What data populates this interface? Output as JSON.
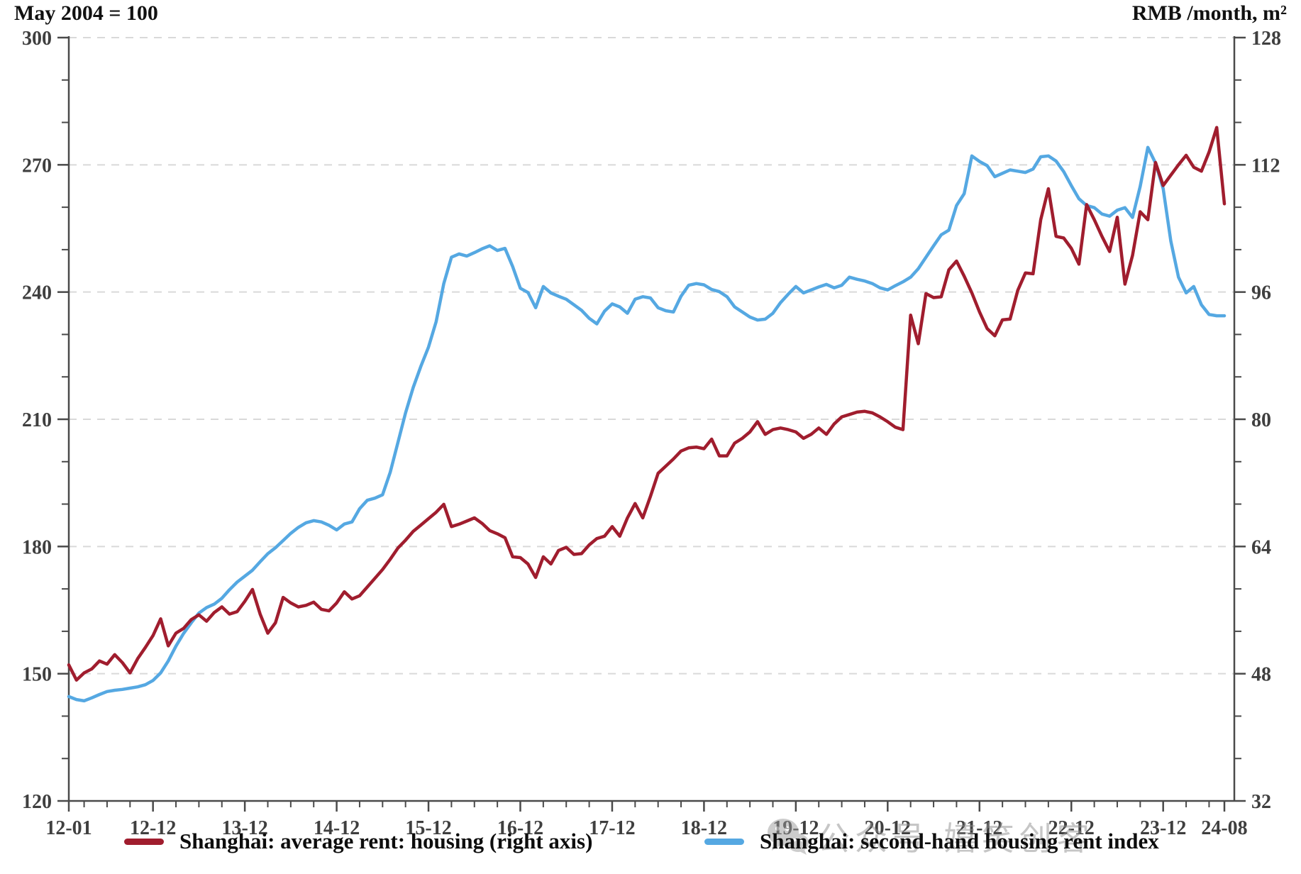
{
  "titles": {
    "left": "May 2004 = 100",
    "right": "RMB /month, m²"
  },
  "legend": {
    "items": [
      {
        "label": "Shanghai: average rent: housing (right axis)",
        "color": "#a01d2e"
      },
      {
        "label": "Shanghai: second-hand housing rent index",
        "color": "#55a8e2"
      }
    ]
  },
  "watermark": {
    "icon": "wechat-icon",
    "text": "公众号 嬉笑创客"
  },
  "colors": {
    "red_series": "#a01d2e",
    "blue_series": "#55a8e2",
    "grid": "#d9d9d9",
    "spine": "#4a4a4a",
    "tick_label": "#3f3f3f"
  },
  "chart_data": {
    "type": "line",
    "title": "",
    "x_unit": "month",
    "x_start": "2012-01",
    "x_end": "2024-08",
    "points_count": 152,
    "grid": "horizontal-dashed",
    "legend_position": "bottom",
    "left_axis": {
      "title": "May 2004 = 100",
      "min": 120,
      "max": 300,
      "major_step": 30,
      "minor_step": 10,
      "major_labels": [
        "300",
        "270",
        "240",
        "210",
        "180",
        "150",
        "120"
      ]
    },
    "right_axis": {
      "title": "RMB /month, m²",
      "min": 32,
      "max": 128,
      "major_step": 16,
      "major_labels": [
        "128",
        "112",
        "96",
        "80",
        "64",
        "48",
        "32"
      ]
    },
    "x_ticks": [
      {
        "label": "12-01",
        "month_index": 0
      },
      {
        "label": "12-12",
        "month_index": 11
      },
      {
        "label": "13-12",
        "month_index": 23
      },
      {
        "label": "14-12",
        "month_index": 35
      },
      {
        "label": "15-12",
        "month_index": 47
      },
      {
        "label": "16-12",
        "month_index": 59
      },
      {
        "label": "17-12",
        "month_index": 71
      },
      {
        "label": "18-12",
        "month_index": 83
      },
      {
        "label": "19-12",
        "month_index": 95
      },
      {
        "label": "20-12",
        "month_index": 107
      },
      {
        "label": "21-12",
        "month_index": 119
      },
      {
        "label": "22-12",
        "month_index": 131
      },
      {
        "label": "23-12",
        "month_index": 143
      },
      {
        "label": "24-08",
        "month_index": 151
      }
    ],
    "series": [
      {
        "name": "Shanghai: second-hand housing rent index",
        "axis": "left",
        "color": "#55a8e2",
        "values": [
          144.6,
          143.9,
          143.6,
          144.3,
          145.1,
          145.8,
          146.1,
          146.3,
          146.6,
          146.9,
          147.4,
          148.4,
          150.2,
          153.0,
          156.5,
          159.5,
          162.0,
          164.3,
          165.6,
          166.4,
          167.8,
          169.8,
          171.6,
          173.0,
          174.4,
          176.4,
          178.3,
          179.7,
          181.4,
          183.1,
          184.5,
          185.6,
          186.1,
          185.8,
          185.0,
          183.9,
          185.3,
          185.8,
          188.9,
          190.9,
          191.4,
          192.2,
          197.5,
          204.5,
          211.5,
          217.5,
          222.5,
          227.0,
          233.0,
          242.0,
          248.2,
          249.0,
          248.5,
          249.3,
          250.2,
          250.9,
          249.8,
          250.3,
          246.0,
          240.9,
          239.9,
          236.3,
          241.3,
          239.8,
          239.0,
          238.3,
          237.0,
          235.7,
          233.8,
          232.5,
          235.5,
          237.2,
          236.5,
          235.0,
          238.3,
          238.9,
          238.6,
          236.3,
          235.6,
          235.3,
          239.0,
          241.6,
          242.0,
          241.7,
          240.6,
          240.1,
          238.9,
          236.5,
          235.3,
          234.1,
          233.4,
          233.6,
          235.0,
          237.5,
          239.5,
          241.3,
          239.8,
          240.5,
          241.2,
          241.8,
          241.0,
          241.6,
          243.5,
          243.0,
          242.6,
          242.0,
          241.0,
          240.5,
          241.5,
          242.4,
          243.5,
          245.5,
          248.2,
          250.9,
          253.5,
          254.6,
          260.4,
          263.2,
          272.1,
          270.8,
          269.8,
          267.2,
          268.0,
          268.8,
          268.5,
          268.2,
          269.0,
          271.9,
          272.1,
          270.9,
          268.4,
          265.1,
          262.0,
          260.4,
          259.9,
          258.4,
          257.9,
          259.3,
          259.9,
          257.6,
          264.9,
          274.1,
          270.4,
          264.4,
          252.0,
          243.5,
          239.8,
          241.3,
          237.0,
          234.7,
          234.4,
          234.4
        ]
      },
      {
        "name": "Shanghai: average rent: housing (right axis)",
        "axis": "right",
        "color": "#a01d2e",
        "values": [
          49.1,
          47.2,
          48.1,
          48.6,
          49.6,
          49.2,
          50.4,
          49.4,
          48.1,
          49.9,
          51.3,
          52.8,
          54.9,
          51.5,
          53.1,
          53.7,
          54.8,
          55.4,
          54.6,
          55.7,
          56.4,
          55.5,
          55.8,
          57.1,
          58.6,
          55.5,
          53.1,
          54.4,
          57.6,
          56.9,
          56.4,
          56.6,
          57.0,
          56.1,
          55.9,
          56.9,
          58.3,
          57.4,
          57.8,
          58.9,
          60.0,
          61.1,
          62.4,
          63.8,
          64.8,
          65.9,
          66.7,
          67.5,
          68.3,
          69.3,
          66.5,
          66.8,
          67.2,
          67.6,
          66.9,
          66.0,
          65.6,
          65.1,
          62.7,
          62.6,
          61.8,
          60.1,
          62.7,
          61.8,
          63.5,
          63.9,
          63.0,
          63.1,
          64.2,
          65.0,
          65.3,
          66.5,
          65.3,
          67.6,
          69.4,
          67.6,
          70.3,
          73.2,
          74.1,
          75.0,
          76.0,
          76.4,
          76.5,
          76.3,
          77.5,
          75.4,
          75.4,
          77.0,
          77.6,
          78.4,
          79.7,
          78.1,
          78.7,
          78.9,
          78.7,
          78.4,
          77.6,
          78.1,
          78.9,
          78.1,
          79.4,
          80.3,
          80.6,
          80.9,
          81.0,
          80.8,
          80.3,
          79.7,
          79.0,
          78.7,
          93.1,
          89.5,
          95.8,
          95.3,
          95.4,
          98.8,
          99.9,
          98.0,
          95.9,
          93.5,
          91.4,
          90.5,
          92.5,
          92.6,
          96.2,
          98.4,
          98.3,
          105.1,
          109.0,
          103.0,
          102.8,
          101.5,
          99.5,
          107.0,
          105.1,
          103.0,
          101.1,
          105.4,
          97.0,
          100.6,
          106.1,
          105.1,
          112.3,
          109.4,
          110.7,
          112.0,
          113.2,
          111.7,
          111.2,
          113.6,
          116.7,
          107.1
        ]
      }
    ]
  }
}
